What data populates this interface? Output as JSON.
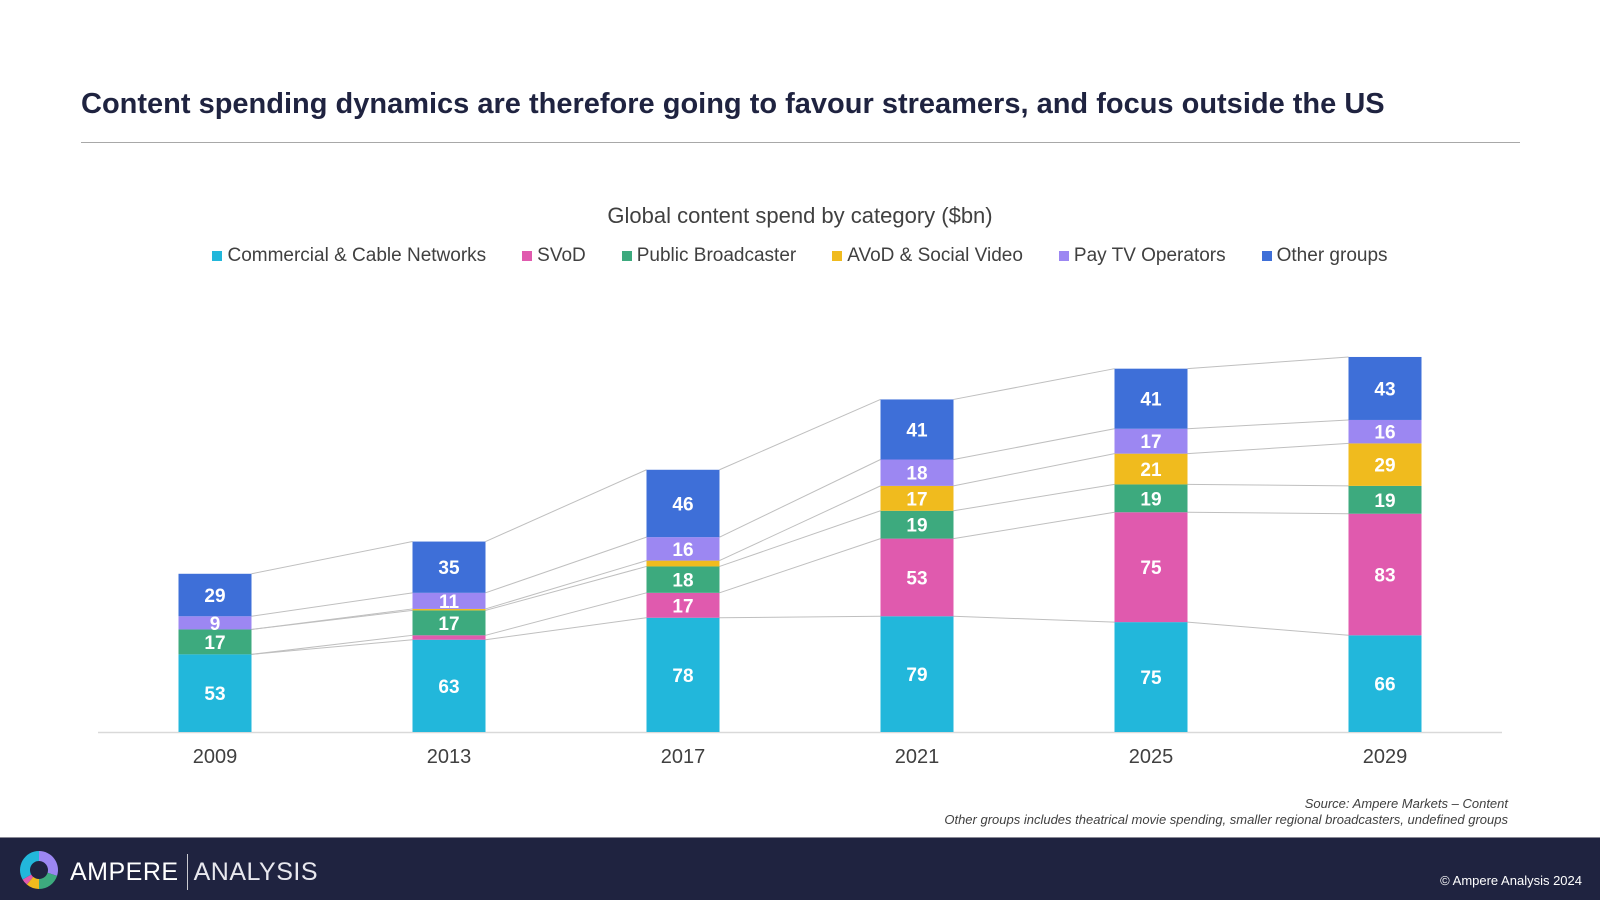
{
  "page": {
    "title": "Content spending dynamics are therefore going to favour streamers, and focus outside the US",
    "source_line1": "Source: Ampere Markets – Content",
    "source_line2": "Other groups includes theatrical movie spending, smaller regional broadcasters, undefined groups",
    "footer": {
      "logo_primary": "AMPERE",
      "logo_secondary": "ANALYSIS",
      "logo_icon": "donut-logo-icon",
      "copyright": "© Ampere Analysis 2024"
    }
  },
  "chart_data": {
    "type": "bar",
    "stacked": true,
    "title": "Global content spend by category ($bn)",
    "xlabel": "",
    "ylabel": "",
    "ylim": [
      0,
      260
    ],
    "grid": false,
    "legend_position": "top-center",
    "connector_lines": true,
    "categories": [
      "2009",
      "2013",
      "2017",
      "2021",
      "2025",
      "2029"
    ],
    "series": [
      {
        "name": "Commercial & Cable Networks",
        "color": "#22b7db",
        "values": [
          53,
          63,
          78,
          79,
          75,
          66
        ],
        "labels": [
          "53",
          "63",
          "78",
          "79",
          "75",
          "66"
        ]
      },
      {
        "name": "SVoD",
        "color": "#e05aae",
        "values": [
          0,
          3,
          17,
          53,
          75,
          83
        ],
        "labels": [
          "",
          "",
          "17",
          "53",
          "75",
          "83"
        ]
      },
      {
        "name": "Public Broadcaster",
        "color": "#3daa7e",
        "values": [
          17,
          17,
          18,
          19,
          19,
          19
        ],
        "labels": [
          "17",
          "17",
          "18",
          "19",
          "19",
          "19"
        ]
      },
      {
        "name": "AVoD & Social Video",
        "color": "#f0bb1e",
        "values": [
          0,
          1,
          4,
          17,
          21,
          29
        ],
        "labels": [
          "",
          "",
          "",
          "17",
          "21",
          "29"
        ]
      },
      {
        "name": "Pay TV Operators",
        "color": "#9c87f2",
        "values": [
          9,
          11,
          16,
          18,
          17,
          16
        ],
        "labels": [
          "9",
          "11",
          "16",
          "18",
          "17",
          "16"
        ]
      },
      {
        "name": "Other groups",
        "color": "#3e6fd8",
        "values": [
          29,
          35,
          46,
          41,
          41,
          43
        ],
        "labels": [
          "29",
          "35",
          "46",
          "41",
          "41",
          "43"
        ]
      }
    ]
  }
}
